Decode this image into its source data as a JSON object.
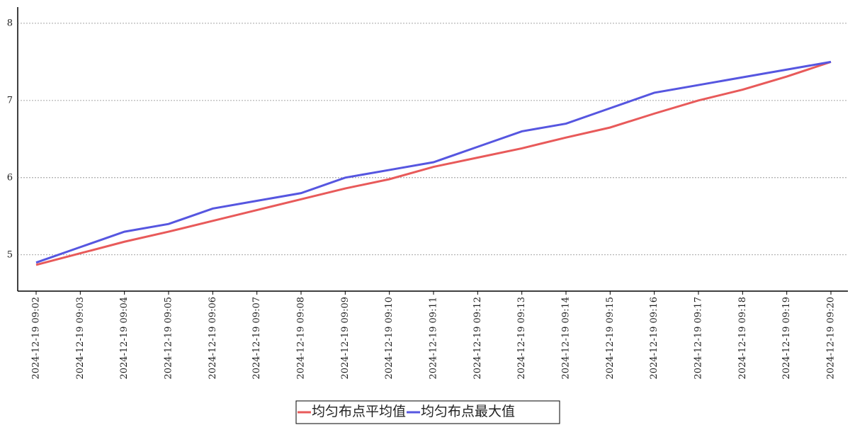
{
  "chart_data": {
    "type": "line",
    "categories": [
      "2024-12-19 09:02",
      "2024-12-19 09:03",
      "2024-12-19 09:04",
      "2024-12-19 09:05",
      "2024-12-19 09:06",
      "2024-12-19 09:07",
      "2024-12-19 09:08",
      "2024-12-19 09:09",
      "2024-12-19 09:10",
      "2024-12-19 09:11",
      "2024-12-19 09:12",
      "2024-12-19 09:13",
      "2024-12-19 09:14",
      "2024-12-19 09:15",
      "2024-12-19 09:16",
      "2024-12-19 09:17",
      "2024-12-19 09:18",
      "2024-12-19 09:19",
      "2024-12-19 09:20"
    ],
    "series": [
      {
        "name": "均匀布点平均值",
        "color": "#e85a5a",
        "values": [
          4.87,
          5.02,
          5.17,
          5.3,
          5.44,
          5.58,
          5.72,
          5.86,
          5.98,
          6.14,
          6.26,
          6.38,
          6.52,
          6.65,
          6.83,
          7.0,
          7.14,
          7.31,
          7.5
        ]
      },
      {
        "name": "均匀布点最大值",
        "color": "#5656e0",
        "values": [
          4.9,
          5.1,
          5.3,
          5.4,
          5.6,
          5.7,
          5.8,
          6.0,
          6.1,
          6.2,
          6.4,
          6.6,
          6.7,
          6.9,
          7.1,
          7.2,
          7.3,
          7.4,
          7.5
        ]
      }
    ],
    "ylim": [
      4.53,
      8.21
    ],
    "yticks": [
      5,
      6,
      7,
      8
    ],
    "grid": true,
    "legend": "bottom"
  }
}
